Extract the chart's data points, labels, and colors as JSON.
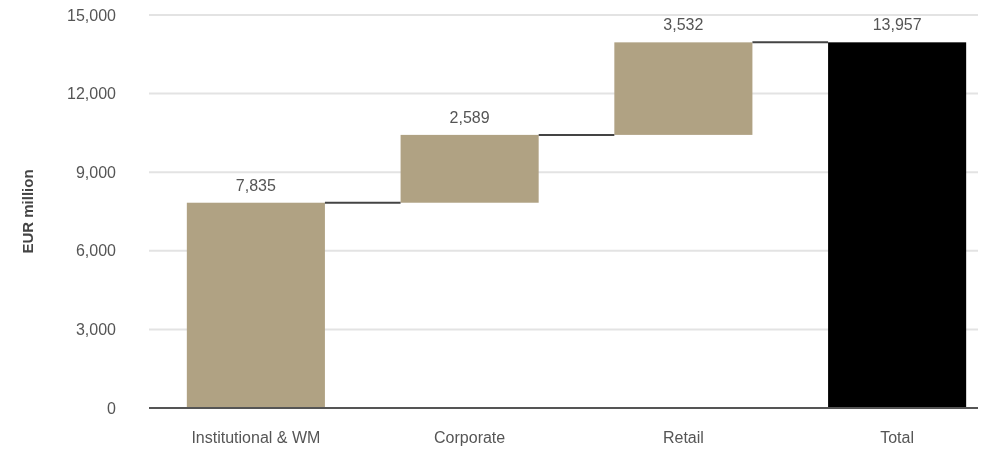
{
  "chart_data": {
    "type": "bar",
    "ylabel": "EUR million",
    "categories": [
      "Institutional & WM",
      "Corporate",
      "Retail",
      "Total"
    ],
    "values": [
      7835,
      2589,
      3532,
      13957
    ],
    "base": [
      0,
      7835,
      10424,
      0
    ],
    "colors": [
      "#b0a283",
      "#b0a283",
      "#b0a283",
      "#000000"
    ],
    "value_labels": [
      "7,835",
      "2,589",
      "3,532",
      "13,957"
    ],
    "ylim": [
      0,
      15000
    ],
    "yticks": [
      {
        "value": 0,
        "label": "0"
      },
      {
        "value": 3000,
        "label": "3,000"
      },
      {
        "value": 6000,
        "label": "6,000"
      },
      {
        "value": 9000,
        "label": "9,000"
      },
      {
        "value": 12000,
        "label": "12,000"
      },
      {
        "value": 15000,
        "label": "15,000"
      }
    ],
    "grid": "y"
  }
}
